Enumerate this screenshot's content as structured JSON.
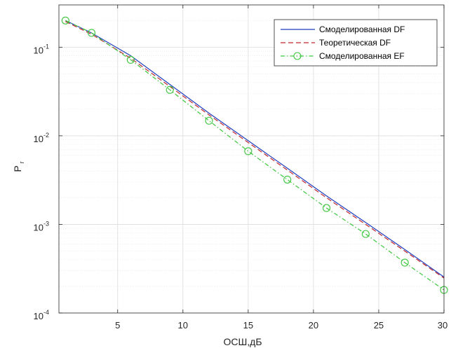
{
  "chart_data": {
    "type": "line",
    "title": "",
    "xlabel": "ОСШ,дБ",
    "ylabel": "P",
    "ylabel_sub": "r",
    "xlim": [
      0.5,
      30
    ],
    "ylim": [
      0.0001,
      0.3
    ],
    "yscale": "log",
    "grid": true,
    "legend_position": "top-right",
    "x_ticks": [
      5,
      10,
      15,
      20,
      25,
      30
    ],
    "y_ticks": [
      {
        "value": 0.0001,
        "base": "10",
        "exp": "-4"
      },
      {
        "value": 0.001,
        "base": "10",
        "exp": "-3"
      },
      {
        "value": 0.01,
        "base": "10",
        "exp": "-2"
      },
      {
        "value": 0.1,
        "base": "10",
        "exp": "-1"
      }
    ],
    "series": [
      {
        "name": "Смоделированная DF",
        "color": "#1f3fbf",
        "dash": "",
        "marker": "none",
        "x": [
          1,
          3,
          6,
          9,
          12,
          15,
          18,
          21,
          24,
          27,
          30
        ],
        "y": [
          0.2,
          0.145,
          0.08,
          0.038,
          0.018,
          0.0088,
          0.0043,
          0.0021,
          0.00105,
          0.00052,
          0.000255
        ]
      },
      {
        "name": "Теоретическая DF",
        "color": "#c0272d",
        "dash": "7,4",
        "marker": "none",
        "x": [
          1,
          3,
          6,
          9,
          12,
          15,
          18,
          21,
          24,
          27,
          30
        ],
        "y": [
          0.195,
          0.14,
          0.075,
          0.036,
          0.0172,
          0.0084,
          0.0041,
          0.002,
          0.001,
          0.0005,
          0.000248
        ]
      },
      {
        "name": "Смоделированная EF",
        "color": "#3cc63c",
        "dash": "6,3,1.5,3",
        "marker": "circle",
        "x": [
          1,
          3,
          6,
          9,
          12,
          15,
          18,
          21,
          24,
          27,
          30
        ],
        "y": [
          0.2,
          0.145,
          0.072,
          0.033,
          0.0148,
          0.0067,
          0.0032,
          0.00153,
          0.00078,
          0.00037,
          0.000182
        ]
      }
    ]
  }
}
